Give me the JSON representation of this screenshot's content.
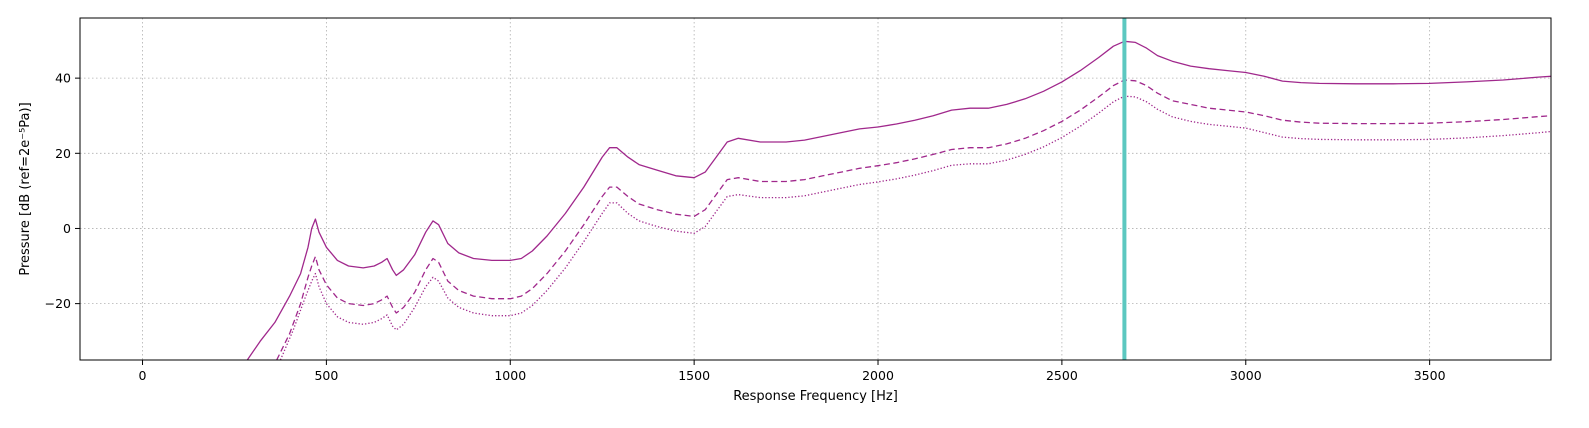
{
  "chart_data": {
    "type": "line",
    "title": "",
    "xlabel": "Response Frequency [Hz]",
    "ylabel": "Pressure [dB (ref=2e⁻⁵Pa)]",
    "xlim": [
      -170,
      3830
    ],
    "ylim": [
      -35,
      56
    ],
    "xticks": [
      0,
      500,
      1000,
      1500,
      2000,
      2500,
      3000,
      3500
    ],
    "xtick_labels": [
      "0",
      "500",
      "1000",
      "1500",
      "2000",
      "2500",
      "3000",
      "3500"
    ],
    "yticks": [
      -20,
      0,
      20,
      40
    ],
    "ytick_labels": [
      "−20",
      "0",
      "20",
      "40"
    ],
    "grid": true,
    "legend": "none",
    "marker_line": {
      "x": 2670,
      "color": "#5cc8c0"
    },
    "series": [
      {
        "style": "solid",
        "color": "#a0288c",
        "points": [
          [
            285,
            -35
          ],
          [
            320,
            -30
          ],
          [
            360,
            -25
          ],
          [
            400,
            -18
          ],
          [
            430,
            -12
          ],
          [
            450,
            -5
          ],
          [
            460,
            0
          ],
          [
            470,
            2.5
          ],
          [
            480,
            -1
          ],
          [
            500,
            -5
          ],
          [
            530,
            -8.5
          ],
          [
            560,
            -10
          ],
          [
            600,
            -10.5
          ],
          [
            630,
            -10
          ],
          [
            650,
            -9
          ],
          [
            665,
            -8
          ],
          [
            680,
            -11
          ],
          [
            690,
            -12.5
          ],
          [
            710,
            -11
          ],
          [
            740,
            -7
          ],
          [
            770,
            -1
          ],
          [
            790,
            2
          ],
          [
            805,
            1
          ],
          [
            830,
            -4
          ],
          [
            860,
            -6.5
          ],
          [
            900,
            -8
          ],
          [
            950,
            -8.5
          ],
          [
            1000,
            -8.5
          ],
          [
            1030,
            -8
          ],
          [
            1060,
            -6
          ],
          [
            1100,
            -2
          ],
          [
            1150,
            4
          ],
          [
            1200,
            11
          ],
          [
            1250,
            19
          ],
          [
            1270,
            21.5
          ],
          [
            1290,
            21.5
          ],
          [
            1320,
            19
          ],
          [
            1350,
            17
          ],
          [
            1400,
            15.5
          ],
          [
            1450,
            14
          ],
          [
            1500,
            13.5
          ],
          [
            1530,
            15
          ],
          [
            1560,
            19
          ],
          [
            1590,
            23
          ],
          [
            1620,
            24
          ],
          [
            1680,
            23
          ],
          [
            1750,
            23
          ],
          [
            1800,
            23.5
          ],
          [
            1850,
            24.5
          ],
          [
            1900,
            25.5
          ],
          [
            1950,
            26.5
          ],
          [
            2000,
            27
          ],
          [
            2050,
            27.8
          ],
          [
            2100,
            28.8
          ],
          [
            2150,
            30
          ],
          [
            2200,
            31.5
          ],
          [
            2250,
            32
          ],
          [
            2300,
            32
          ],
          [
            2350,
            33
          ],
          [
            2400,
            34.5
          ],
          [
            2450,
            36.5
          ],
          [
            2500,
            39
          ],
          [
            2550,
            42
          ],
          [
            2600,
            45.5
          ],
          [
            2640,
            48.5
          ],
          [
            2670,
            49.8
          ],
          [
            2700,
            49.5
          ],
          [
            2730,
            48
          ],
          [
            2760,
            46
          ],
          [
            2800,
            44.5
          ],
          [
            2850,
            43.2
          ],
          [
            2900,
            42.5
          ],
          [
            2950,
            42
          ],
          [
            3000,
            41.5
          ],
          [
            3050,
            40.5
          ],
          [
            3100,
            39.2
          ],
          [
            3150,
            38.8
          ],
          [
            3200,
            38.6
          ],
          [
            3300,
            38.5
          ],
          [
            3400,
            38.5
          ],
          [
            3500,
            38.6
          ],
          [
            3600,
            39
          ],
          [
            3700,
            39.5
          ],
          [
            3800,
            40.3
          ],
          [
            3830,
            40.5
          ]
        ]
      },
      {
        "style": "dashed",
        "color": "#a0288c",
        "points": [
          [
            365,
            -35
          ],
          [
            400,
            -28
          ],
          [
            430,
            -20
          ],
          [
            450,
            -13
          ],
          [
            460,
            -10
          ],
          [
            470,
            -7.5
          ],
          [
            480,
            -11
          ],
          [
            500,
            -15
          ],
          [
            530,
            -18.5
          ],
          [
            560,
            -20
          ],
          [
            600,
            -20.5
          ],
          [
            630,
            -20
          ],
          [
            650,
            -19
          ],
          [
            665,
            -18
          ],
          [
            680,
            -21
          ],
          [
            690,
            -22.5
          ],
          [
            710,
            -21
          ],
          [
            740,
            -17
          ],
          [
            770,
            -11
          ],
          [
            790,
            -8
          ],
          [
            805,
            -9
          ],
          [
            830,
            -14
          ],
          [
            860,
            -16.5
          ],
          [
            900,
            -18
          ],
          [
            950,
            -18.7
          ],
          [
            1000,
            -18.7
          ],
          [
            1030,
            -18
          ],
          [
            1060,
            -16
          ],
          [
            1100,
            -12
          ],
          [
            1150,
            -6
          ],
          [
            1200,
            1
          ],
          [
            1250,
            8.5
          ],
          [
            1270,
            11
          ],
          [
            1290,
            11
          ],
          [
            1320,
            8.5
          ],
          [
            1350,
            6.5
          ],
          [
            1400,
            5
          ],
          [
            1450,
            3.8
          ],
          [
            1500,
            3.2
          ],
          [
            1530,
            5
          ],
          [
            1560,
            9
          ],
          [
            1590,
            13
          ],
          [
            1620,
            13.5
          ],
          [
            1680,
            12.5
          ],
          [
            1750,
            12.5
          ],
          [
            1800,
            13
          ],
          [
            1850,
            14
          ],
          [
            1900,
            15
          ],
          [
            1950,
            16
          ],
          [
            2000,
            16.7
          ],
          [
            2050,
            17.5
          ],
          [
            2100,
            18.5
          ],
          [
            2150,
            19.7
          ],
          [
            2200,
            21
          ],
          [
            2250,
            21.5
          ],
          [
            2300,
            21.5
          ],
          [
            2350,
            22.5
          ],
          [
            2400,
            24
          ],
          [
            2450,
            26
          ],
          [
            2500,
            28.5
          ],
          [
            2550,
            31.5
          ],
          [
            2600,
            35
          ],
          [
            2640,
            38
          ],
          [
            2670,
            39.5
          ],
          [
            2700,
            39.3
          ],
          [
            2730,
            38
          ],
          [
            2760,
            36
          ],
          [
            2800,
            34
          ],
          [
            2850,
            33
          ],
          [
            2900,
            32
          ],
          [
            2950,
            31.5
          ],
          [
            3000,
            31
          ],
          [
            3050,
            30
          ],
          [
            3100,
            28.8
          ],
          [
            3150,
            28.3
          ],
          [
            3200,
            28
          ],
          [
            3300,
            27.9
          ],
          [
            3400,
            27.9
          ],
          [
            3500,
            28
          ],
          [
            3600,
            28.4
          ],
          [
            3700,
            29
          ],
          [
            3800,
            29.8
          ],
          [
            3830,
            30
          ]
        ]
      },
      {
        "style": "dotted",
        "color": "#a0288c",
        "points": [
          [
            375,
            -35
          ],
          [
            410,
            -27
          ],
          [
            440,
            -19
          ],
          [
            460,
            -14
          ],
          [
            470,
            -12
          ],
          [
            480,
            -15.5
          ],
          [
            500,
            -20
          ],
          [
            530,
            -23.5
          ],
          [
            560,
            -25
          ],
          [
            600,
            -25.5
          ],
          [
            630,
            -25
          ],
          [
            650,
            -24
          ],
          [
            665,
            -23
          ],
          [
            680,
            -26
          ],
          [
            690,
            -27
          ],
          [
            710,
            -25.5
          ],
          [
            740,
            -21
          ],
          [
            770,
            -15.5
          ],
          [
            790,
            -13
          ],
          [
            805,
            -14
          ],
          [
            830,
            -18.5
          ],
          [
            860,
            -21
          ],
          [
            900,
            -22.5
          ],
          [
            950,
            -23.2
          ],
          [
            1000,
            -23.2
          ],
          [
            1030,
            -22.5
          ],
          [
            1060,
            -20.5
          ],
          [
            1100,
            -16.5
          ],
          [
            1150,
            -10.5
          ],
          [
            1200,
            -3.5
          ],
          [
            1250,
            4
          ],
          [
            1270,
            6.8
          ],
          [
            1290,
            6.8
          ],
          [
            1320,
            4
          ],
          [
            1350,
            2
          ],
          [
            1400,
            0.5
          ],
          [
            1450,
            -0.7
          ],
          [
            1500,
            -1.3
          ],
          [
            1530,
            0.5
          ],
          [
            1560,
            4.5
          ],
          [
            1590,
            8.5
          ],
          [
            1620,
            9
          ],
          [
            1680,
            8.2
          ],
          [
            1750,
            8.2
          ],
          [
            1800,
            8.7
          ],
          [
            1850,
            9.7
          ],
          [
            1900,
            10.7
          ],
          [
            1950,
            11.7
          ],
          [
            2000,
            12.4
          ],
          [
            2050,
            13.2
          ],
          [
            2100,
            14.2
          ],
          [
            2150,
            15.4
          ],
          [
            2200,
            16.8
          ],
          [
            2250,
            17.2
          ],
          [
            2300,
            17.2
          ],
          [
            2350,
            18.2
          ],
          [
            2400,
            19.7
          ],
          [
            2450,
            21.7
          ],
          [
            2500,
            24.2
          ],
          [
            2550,
            27.2
          ],
          [
            2600,
            30.7
          ],
          [
            2640,
            33.7
          ],
          [
            2670,
            35.2
          ],
          [
            2700,
            35
          ],
          [
            2730,
            33.7
          ],
          [
            2760,
            31.7
          ],
          [
            2800,
            29.7
          ],
          [
            2850,
            28.5
          ],
          [
            2900,
            27.7
          ],
          [
            2950,
            27.2
          ],
          [
            3000,
            26.7
          ],
          [
            3050,
            25.5
          ],
          [
            3100,
            24.3
          ],
          [
            3150,
            23.9
          ],
          [
            3200,
            23.7
          ],
          [
            3300,
            23.6
          ],
          [
            3400,
            23.6
          ],
          [
            3500,
            23.7
          ],
          [
            3600,
            24.1
          ],
          [
            3700,
            24.7
          ],
          [
            3800,
            25.5
          ],
          [
            3830,
            25.8
          ]
        ]
      }
    ]
  }
}
